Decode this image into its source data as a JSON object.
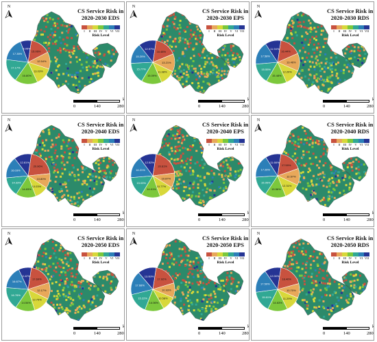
{
  "panels": [
    {
      "title_line1": "CS Service Risk in",
      "title_line2": "2020-2030 EDS",
      "slices": [
        {
          "label": "15.06%",
          "value": 15.06,
          "color": "#c8523f"
        },
        {
          "label": "12.54%",
          "value": 12.54,
          "color": "#e8a85a"
        },
        {
          "label": "13.03%",
          "value": 13.03,
          "color": "#d8d83a"
        },
        {
          "label": "16.80%",
          "value": 16.8,
          "color": "#7cc83c"
        },
        {
          "label": "17.17%",
          "value": 17.17,
          "color": "#31a894"
        },
        {
          "label": "17.35%",
          "value": 17.35,
          "color": "#2c7fb8"
        },
        {
          "label": "8.05%",
          "value": 8.05,
          "color": "#253494"
        }
      ]
    },
    {
      "title_line1": "CS Service Risk in",
      "title_line2": "2020-2030 EPS",
      "slices": [
        {
          "label": "16.48%",
          "value": 16.48,
          "color": "#c8523f"
        },
        {
          "label": "13.21%",
          "value": 13.21,
          "color": "#e8a85a"
        },
        {
          "label": "11.38%",
          "value": 11.38,
          "color": "#d8d83a"
        },
        {
          "label": "15.09%",
          "value": 15.09,
          "color": "#7cc83c"
        },
        {
          "label": "15.77%",
          "value": 15.77,
          "color": "#31a894"
        },
        {
          "label": "15.20%",
          "value": 15.2,
          "color": "#2c7fb8"
        },
        {
          "label": "12.97%",
          "value": 12.97,
          "color": "#253494"
        }
      ]
    },
    {
      "title_line1": "CS Service Risk in",
      "title_line2": "2020-2030 RDS",
      "slices": [
        {
          "label": "16.44%",
          "value": 16.44,
          "color": "#c8523f"
        },
        {
          "label": "13.46%",
          "value": 13.46,
          "color": "#e8a85a"
        },
        {
          "label": "12.20%",
          "value": 12.2,
          "color": "#d8d83a"
        },
        {
          "label": "15.48%",
          "value": 15.48,
          "color": "#7cc83c"
        },
        {
          "label": "15.55%",
          "value": 15.55,
          "color": "#31a894"
        },
        {
          "label": "17.58%",
          "value": 17.58,
          "color": "#2c7fb8"
        },
        {
          "label": "11.94%",
          "value": 11.94,
          "color": "#253494"
        }
      ]
    },
    {
      "title_line1": "CS Service Risk in",
      "title_line2": "2020-2040 EDS",
      "slices": [
        {
          "label": "20.96%",
          "value": 20.96,
          "color": "#c8523f"
        },
        {
          "label": "10.80%",
          "value": 10.8,
          "color": "#e8a85a"
        },
        {
          "label": "10.03%",
          "value": 10.03,
          "color": "#d8d83a"
        },
        {
          "label": "14.83%",
          "value": 14.83,
          "color": "#7cc83c"
        },
        {
          "label": "14.33%",
          "value": 14.33,
          "color": "#31a894"
        },
        {
          "label": "16.03%",
          "value": 16.03,
          "color": "#2c7fb8"
        },
        {
          "label": "12.81%",
          "value": 12.81,
          "color": "#253494"
        }
      ]
    },
    {
      "title_line1": "CS Service Risk in",
      "title_line2": "2020-2040 EPS",
      "slices": [
        {
          "label": "20.61%",
          "value": 20.61,
          "color": "#c8523f"
        },
        {
          "label": "10.87%",
          "value": 10.87,
          "color": "#e8a85a"
        },
        {
          "label": "10.77%",
          "value": 10.77,
          "color": "#d8d83a"
        },
        {
          "label": "14.01%",
          "value": 14.01,
          "color": "#7cc83c"
        },
        {
          "label": "15.03%",
          "value": 15.03,
          "color": "#31a894"
        },
        {
          "label": "16.21%",
          "value": 16.21,
          "color": "#2c7fb8"
        },
        {
          "label": "12.52%",
          "value": 12.52,
          "color": "#253494"
        }
      ]
    },
    {
      "title_line1": "CS Service Risk in",
      "title_line2": "2020-2040 RDS",
      "slices": [
        {
          "label": "17.59%",
          "value": 17.59,
          "color": "#c8523f"
        },
        {
          "label": "12.57%",
          "value": 12.57,
          "color": "#e8a85a"
        },
        {
          "label": "12.31%",
          "value": 12.31,
          "color": "#d8d83a"
        },
        {
          "label": "15.56%",
          "value": 15.56,
          "color": "#7cc83c"
        },
        {
          "label": "15.05%",
          "value": 15.05,
          "color": "#31a894"
        },
        {
          "label": "17.26%",
          "value": 17.26,
          "color": "#2c7fb8"
        },
        {
          "label": "11.66%",
          "value": 11.66,
          "color": "#253494"
        }
      ]
    },
    {
      "title_line1": "CS Service Risk in",
      "title_line2": "2020-2050 EDS",
      "slices": [
        {
          "label": "17.69%",
          "value": 17.69,
          "color": "#c8523f"
        },
        {
          "label": "12.17%",
          "value": 12.17,
          "color": "#e8a85a"
        },
        {
          "label": "12.75%",
          "value": 12.75,
          "color": "#d8d83a"
        },
        {
          "label": "14.54%",
          "value": 14.54,
          "color": "#7cc83c"
        },
        {
          "label": "16.76%",
          "value": 16.76,
          "color": "#31a894"
        },
        {
          "label": "16.67%",
          "value": 16.67,
          "color": "#2c7fb8"
        },
        {
          "label": "9.42%",
          "value": 9.42,
          "color": "#253494"
        }
      ]
    },
    {
      "title_line1": "CS Service Risk in",
      "title_line2": "2020-2050 EPS",
      "slices": [
        {
          "label": "17.92%",
          "value": 17.92,
          "color": "#c8523f"
        },
        {
          "label": "10.93%",
          "value": 10.93,
          "color": "#e8a85a"
        },
        {
          "label": "10.58%",
          "value": 10.58,
          "color": "#d8d83a"
        },
        {
          "label": "14.06%",
          "value": 14.06,
          "color": "#7cc83c"
        },
        {
          "label": "15.22%",
          "value": 15.22,
          "color": "#31a894"
        },
        {
          "label": "17.68%",
          "value": 17.68,
          "color": "#2c7fb8"
        },
        {
          "label": "13.60%",
          "value": 13.6,
          "color": "#253494"
        }
      ]
    },
    {
      "title_line1": "CS Service Risk in",
      "title_line2": "2020-2050 RDS",
      "slices": [
        {
          "label": "18.40%",
          "value": 18.4,
          "color": "#c8523f"
        },
        {
          "label": "10.70%",
          "value": 10.7,
          "color": "#e8a85a"
        },
        {
          "label": "11.29%",
          "value": 11.29,
          "color": "#d8d83a"
        },
        {
          "label": "14.63%",
          "value": 14.63,
          "color": "#7cc83c"
        },
        {
          "label": "15.61%",
          "value": 15.61,
          "color": "#31a894"
        },
        {
          "label": "17.50%",
          "value": 17.5,
          "color": "#2c7fb8"
        },
        {
          "label": "12.06%",
          "value": 12.06,
          "color": "#253494"
        }
      ]
    }
  ],
  "legend": {
    "levels": [
      "I",
      "II",
      "III",
      "IV",
      "V",
      "VI",
      "VII"
    ],
    "colors": [
      "#c8523f",
      "#e8a85a",
      "#d8d83a",
      "#7cc83c",
      "#31a894",
      "#2c7fb8",
      "#253494"
    ],
    "caption": "Risk Level"
  },
  "north_label": "N",
  "scale": {
    "ticks": [
      "0",
      "140",
      "280"
    ],
    "unit": "km"
  }
}
